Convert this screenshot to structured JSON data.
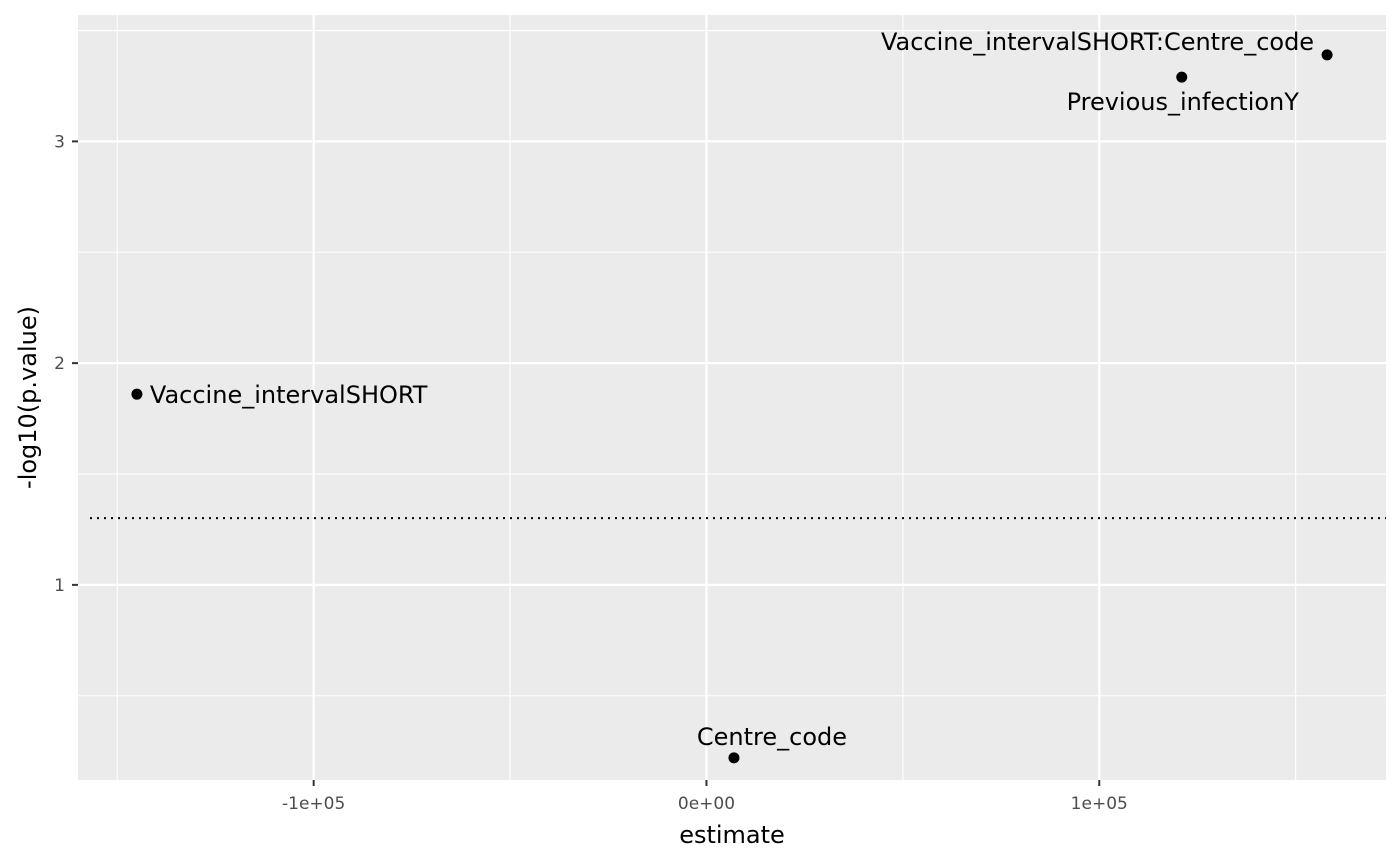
{
  "chart_data": {
    "type": "scatter",
    "title": "",
    "xlabel": "estimate",
    "ylabel": "-log10(p.value)",
    "xlim": [
      -160000,
      173000
    ],
    "ylim": [
      0.12,
      3.57
    ],
    "x_ticks": [
      {
        "value": -100000,
        "label": "-1e+05"
      },
      {
        "value": 0,
        "label": "0e+00"
      },
      {
        "value": 100000,
        "label": "1e+05"
      }
    ],
    "y_ticks": [
      {
        "value": 1,
        "label": "1"
      },
      {
        "value": 2,
        "label": "2"
      },
      {
        "value": 3,
        "label": "3"
      }
    ],
    "grid": true,
    "background": "#ebebeb",
    "grid_color": "#ffffff",
    "point_color": "#000000",
    "threshold": {
      "y": 1.301,
      "style": "dotted"
    },
    "points": [
      {
        "label": "Vaccine_intervalSHORT:Centre_code",
        "x": 158000,
        "y": 3.39,
        "label_side": "left"
      },
      {
        "label": "Previous_infectionY",
        "x": 121000,
        "y": 3.29,
        "label_side": "below"
      },
      {
        "label": "Vaccine_intervalSHORT",
        "x": -145000,
        "y": 1.86,
        "label_side": "right"
      },
      {
        "label": "Centre_code",
        "x": 7000,
        "y": 0.22,
        "label_side": "above"
      }
    ]
  }
}
